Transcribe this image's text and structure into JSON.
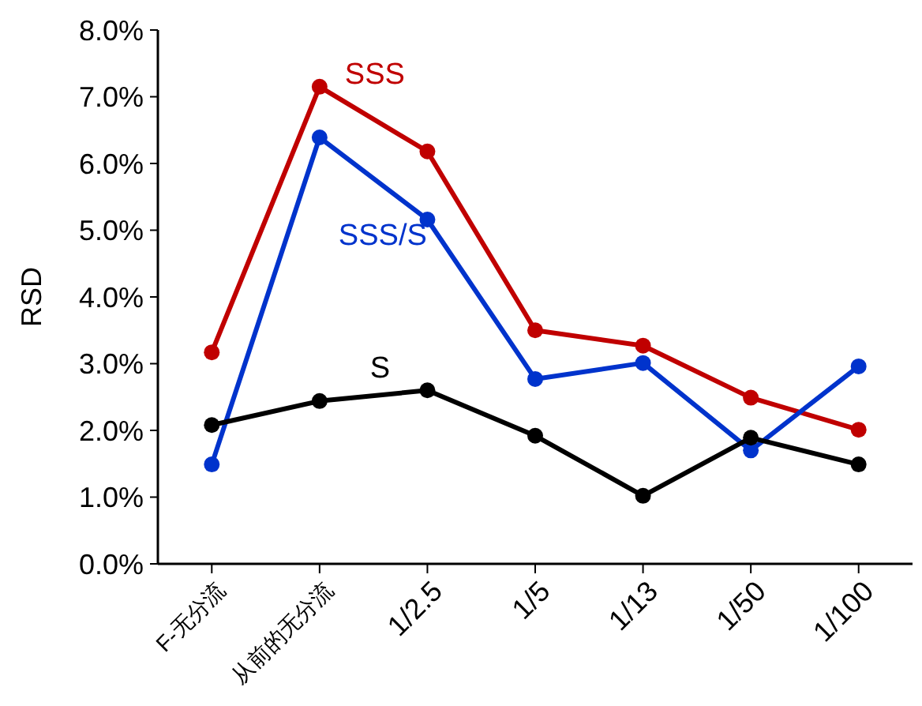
{
  "chart_data": {
    "type": "line",
    "ylabel": "RSD",
    "categories": [
      "F-无分流",
      "从前的无分流",
      "1/2.5",
      "1/5",
      "1/13",
      "1/50",
      "1/100"
    ],
    "series": [
      {
        "name": "SSS",
        "color": "#c00000",
        "values": [
          3.17,
          7.15,
          6.18,
          3.5,
          3.27,
          2.49,
          2.01
        ]
      },
      {
        "name": "SSS/S",
        "color": "#0033cc",
        "values": [
          1.49,
          6.39,
          5.16,
          2.77,
          3.01,
          1.7,
          2.96
        ]
      },
      {
        "name": "S",
        "color": "#000000",
        "values": [
          2.08,
          2.44,
          2.6,
          1.92,
          1.02,
          1.89,
          1.49
        ]
      }
    ],
    "ylim": [
      0,
      8
    ],
    "yticks": [
      {
        "value": 0,
        "label": "0.0%"
      },
      {
        "value": 1,
        "label": "1.0%"
      },
      {
        "value": 2,
        "label": "2.0%"
      },
      {
        "value": 3,
        "label": "3.0%"
      },
      {
        "value": 4,
        "label": "4.0%"
      },
      {
        "value": 5,
        "label": "5.0%"
      },
      {
        "value": 6,
        "label": "6.0%"
      },
      {
        "value": 7,
        "label": "7.0%"
      },
      {
        "value": 8,
        "label": "8.0%"
      }
    ],
    "marker": "circle",
    "line_style": "solid",
    "legend": false,
    "grid": false
  }
}
